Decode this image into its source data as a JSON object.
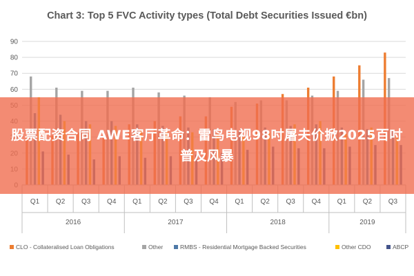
{
  "chart_data": {
    "type": "bar",
    "title": "Chart 3: Top 5 FVC Activity types (Total Debt Securities Issued €bn)",
    "xlabel": "",
    "ylabel": "",
    "ylim": [
      0,
      90
    ],
    "yticks": [
      0,
      10,
      20,
      30,
      40,
      50,
      60,
      70,
      80,
      90
    ],
    "grid": true,
    "legend_position": "bottom",
    "categories": [
      "Q1",
      "Q2",
      "Q3",
      "Q4",
      "Q1",
      "Q2",
      "Q3",
      "Q4",
      "Q1",
      "Q2",
      "Q3",
      "Q4",
      "Q1",
      "Q2",
      "Q3"
    ],
    "year_groups": [
      {
        "label": "2016",
        "quarters": 4
      },
      {
        "label": "2017",
        "quarters": 4
      },
      {
        "label": "2018",
        "quarters": 4
      },
      {
        "label": "2019",
        "quarters": 3
      }
    ],
    "series": [
      {
        "name": "CLO - Collateralised Loan Obligations",
        "color": "#ed7d31",
        "values": [
          30,
          31,
          33,
          33,
          38,
          40,
          43,
          43,
          49,
          51,
          57,
          61,
          68,
          75,
          83
        ]
      },
      {
        "name": "Other",
        "color": "#a5a5a5",
        "values": [
          68,
          61,
          59,
          59,
          61,
          58,
          56,
          55,
          52,
          53,
          53,
          56,
          59,
          66,
          67
        ]
      },
      {
        "name": "RMBS - Residential Mortgage Backed Securities",
        "color": "#4e79a7",
        "values": [
          45,
          44,
          40,
          40,
          38,
          37,
          36,
          35,
          34,
          36,
          37,
          38,
          36,
          35,
          34
        ]
      },
      {
        "name": "Other CDO",
        "color": "#ffc000",
        "values": [
          55,
          40,
          38,
          37,
          35,
          34,
          33,
          32,
          30,
          33,
          38,
          40,
          32,
          36,
          30
        ]
      },
      {
        "name": "ABCP",
        "color": "#44548a",
        "values": [
          21,
          19,
          16,
          18,
          17,
          18,
          19,
          20,
          22,
          24,
          23,
          23,
          24,
          25,
          25
        ]
      }
    ]
  },
  "banner": {
    "text": "股票配资合同 AWE客厅革命：雷鸟电视98吋屠夫价掀2025百吋普及风暴"
  }
}
